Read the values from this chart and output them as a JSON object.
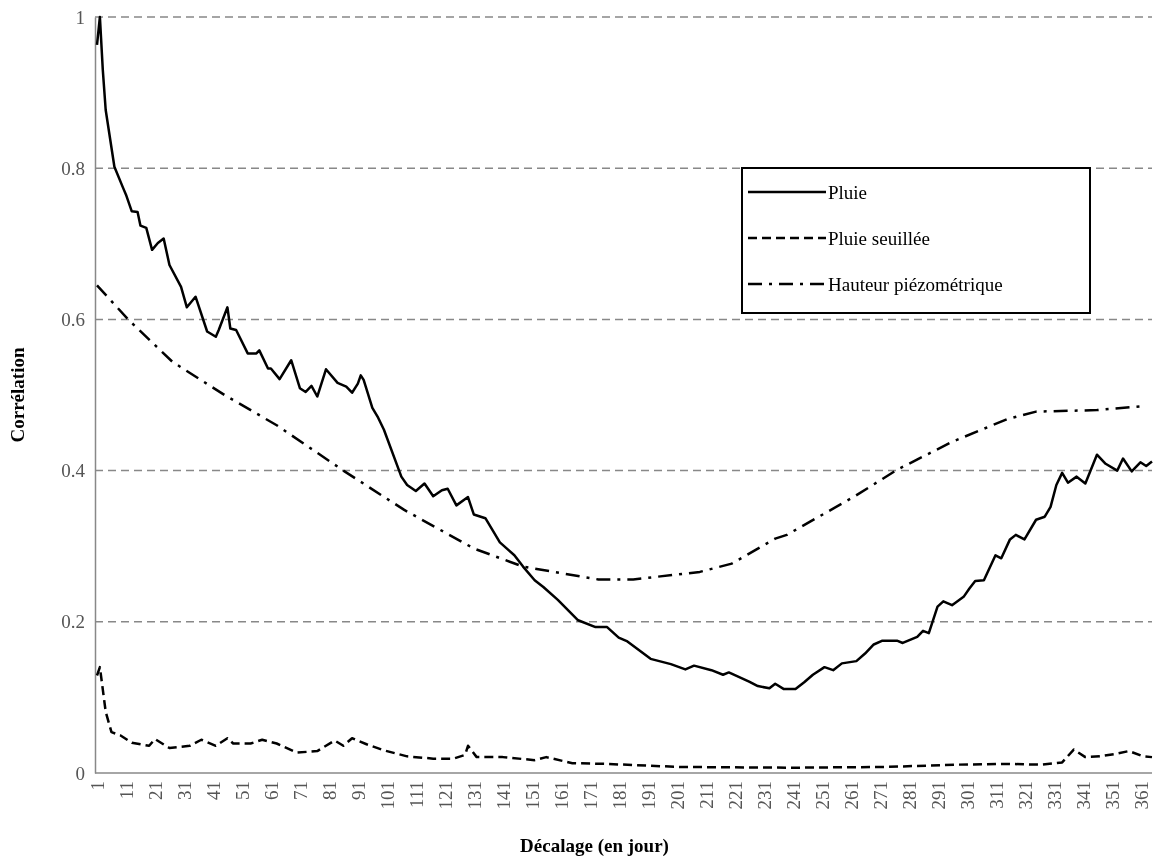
{
  "chart_data": {
    "type": "line",
    "xlabel": "Décalage (en jour)",
    "ylabel": "Corrélation",
    "xlim": [
      1,
      365
    ],
    "ylim": [
      0,
      1
    ],
    "xticks": [
      1,
      11,
      21,
      31,
      41,
      51,
      61,
      71,
      81,
      91,
      101,
      111,
      121,
      131,
      141,
      151,
      161,
      171,
      181,
      191,
      201,
      211,
      221,
      231,
      241,
      251,
      261,
      271,
      281,
      291,
      301,
      311,
      321,
      331,
      341,
      351,
      361
    ],
    "yticks": [
      0,
      {
        "value": 0.2,
        "label": "0.2"
      },
      {
        "value": 0.4,
        "label": "0.4"
      },
      {
        "value": 0.6,
        "label": "0.6"
      },
      {
        "value": 0.8,
        "label": "0.8"
      },
      1
    ],
    "grid": "y",
    "legend": "top right",
    "series": [
      {
        "name": "Pluie",
        "color": "#000000",
        "line_style": "solid",
        "x": [
          1,
          2,
          3,
          4,
          7,
          10,
          11,
          13,
          15,
          16,
          18,
          20,
          22,
          24,
          26,
          30,
          32,
          35,
          39,
          42,
          43,
          46,
          47,
          49,
          53,
          56,
          57,
          60,
          61,
          64,
          68,
          71,
          73,
          75,
          77,
          80,
          84,
          87,
          89,
          91,
          92,
          93,
          96,
          98,
          100,
          106,
          108,
          111,
          114,
          117,
          120,
          122,
          125,
          129,
          131,
          135,
          140,
          145,
          148,
          152,
          155,
          160,
          167,
          173,
          177,
          181,
          184,
          192,
          199,
          204,
          207,
          213,
          217,
          219,
          226,
          229,
          233,
          235,
          238,
          242,
          245,
          248,
          252,
          255,
          258,
          263,
          266,
          269,
          272,
          277,
          279,
          284,
          286,
          288,
          291,
          293,
          296,
          300,
          302,
          304,
          307,
          311,
          313,
          316,
          318,
          321,
          325,
          328,
          330,
          332,
          334,
          336,
          339,
          342,
          346,
          349,
          353,
          355,
          358,
          361,
          363,
          365
        ],
        "values": [
          0.963,
          1.0,
          0.93,
          0.877,
          0.802,
          0.774,
          0.765,
          0.743,
          0.742,
          0.724,
          0.721,
          0.692,
          0.701,
          0.707,
          0.672,
          0.643,
          0.616,
          0.63,
          0.584,
          0.577,
          0.586,
          0.616,
          0.588,
          0.586,
          0.555,
          0.555,
          0.559,
          0.535,
          0.535,
          0.521,
          0.546,
          0.509,
          0.504,
          0.512,
          0.498,
          0.534,
          0.516,
          0.511,
          0.503,
          0.515,
          0.526,
          0.52,
          0.483,
          0.47,
          0.454,
          0.392,
          0.381,
          0.373,
          0.383,
          0.366,
          0.374,
          0.376,
          0.354,
          0.365,
          0.342,
          0.337,
          0.305,
          0.288,
          0.273,
          0.255,
          0.246,
          0.229,
          0.202,
          0.193,
          0.193,
          0.179,
          0.174,
          0.151,
          0.144,
          0.137,
          0.142,
          0.136,
          0.13,
          0.133,
          0.121,
          0.115,
          0.112,
          0.118,
          0.111,
          0.111,
          0.12,
          0.13,
          0.14,
          0.136,
          0.145,
          0.148,
          0.158,
          0.17,
          0.175,
          0.175,
          0.172,
          0.18,
          0.188,
          0.185,
          0.22,
          0.227,
          0.222,
          0.233,
          0.244,
          0.254,
          0.255,
          0.288,
          0.284,
          0.309,
          0.315,
          0.309,
          0.335,
          0.339,
          0.352,
          0.381,
          0.397,
          0.384,
          0.392,
          0.383,
          0.421,
          0.409,
          0.4,
          0.416,
          0.399,
          0.411,
          0.406,
          0.412
        ]
      },
      {
        "name": "Pluie seuillée",
        "color": "#000000",
        "line_style": "dashed",
        "x": [
          1,
          2,
          4,
          6,
          9,
          13,
          19,
          21,
          26,
          33,
          37,
          42,
          46,
          48,
          54,
          58,
          63,
          70,
          77,
          83,
          86,
          89,
          94,
          100,
          108,
          117,
          124,
          128,
          129,
          132,
          141,
          152,
          156,
          165,
          177,
          202,
          240,
          273,
          297,
          315,
          327,
          334,
          338,
          342,
          347,
          352,
          357,
          362,
          365
        ],
        "values": [
          0.129,
          0.14,
          0.081,
          0.054,
          0.05,
          0.04,
          0.036,
          0.045,
          0.033,
          0.036,
          0.044,
          0.036,
          0.046,
          0.039,
          0.039,
          0.044,
          0.039,
          0.027,
          0.029,
          0.043,
          0.036,
          0.046,
          0.038,
          0.03,
          0.022,
          0.019,
          0.019,
          0.024,
          0.036,
          0.021,
          0.021,
          0.017,
          0.021,
          0.013,
          0.012,
          0.008,
          0.007,
          0.008,
          0.011,
          0.012,
          0.011,
          0.014,
          0.031,
          0.021,
          0.022,
          0.025,
          0.029,
          0.022,
          0.021
        ]
      },
      {
        "name": "Hauteur piézométrique",
        "color": "#000000",
        "line_style": "dashdot",
        "x": [
          1,
          12,
          27,
          45,
          63,
          86,
          107,
          131,
          148,
          174,
          186,
          209,
          220,
          235,
          239,
          262,
          277,
          296,
          315,
          325,
          346,
          361
        ],
        "values": [
          0.645,
          0.599,
          0.544,
          0.5,
          0.46,
          0.4,
          0.348,
          0.297,
          0.273,
          0.256,
          0.256,
          0.266,
          0.277,
          0.31,
          0.315,
          0.365,
          0.401,
          0.438,
          0.468,
          0.478,
          0.48,
          0.485
        ]
      }
    ]
  }
}
